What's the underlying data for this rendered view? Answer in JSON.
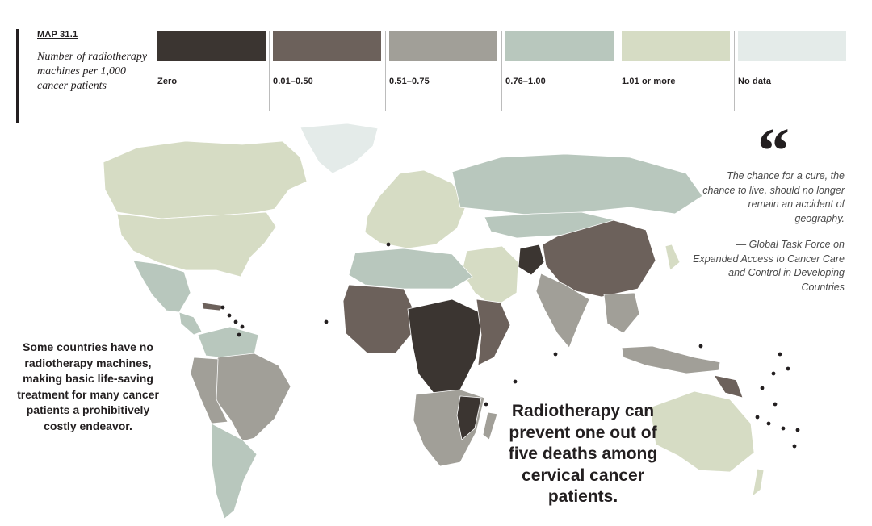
{
  "header": {
    "map_id": "MAP 31.1",
    "title": "Number of radiotherapy machines per 1,000 cancer patients"
  },
  "legend": [
    {
      "label": "Zero",
      "color": "#3b3531"
    },
    {
      "label": "0.01–0.50",
      "color": "#6c615b"
    },
    {
      "label": "0.51–0.75",
      "color": "#a19f98"
    },
    {
      "label": "0.76–1.00",
      "color": "#b8c7bd"
    },
    {
      "label": "1.01 or more",
      "color": "#d6dcc4"
    },
    {
      "label": "No data",
      "color": "#e4ebe9"
    }
  ],
  "quote": {
    "mark": "“",
    "text": "The chance for a cure, the chance to live, should no longer remain an accident of geography.",
    "attribution": "— Global Task Force on Expanded Access to Cancer Care and Control in Developing Countries"
  },
  "notes": {
    "left": "Some countries have no radiotherapy machines, making basic life-saving treatment for many cancer patients a prohibitively costly endeavor.",
    "center": "Radiotherapy can prevent one out of five deaths among cervical cancer patients."
  }
}
